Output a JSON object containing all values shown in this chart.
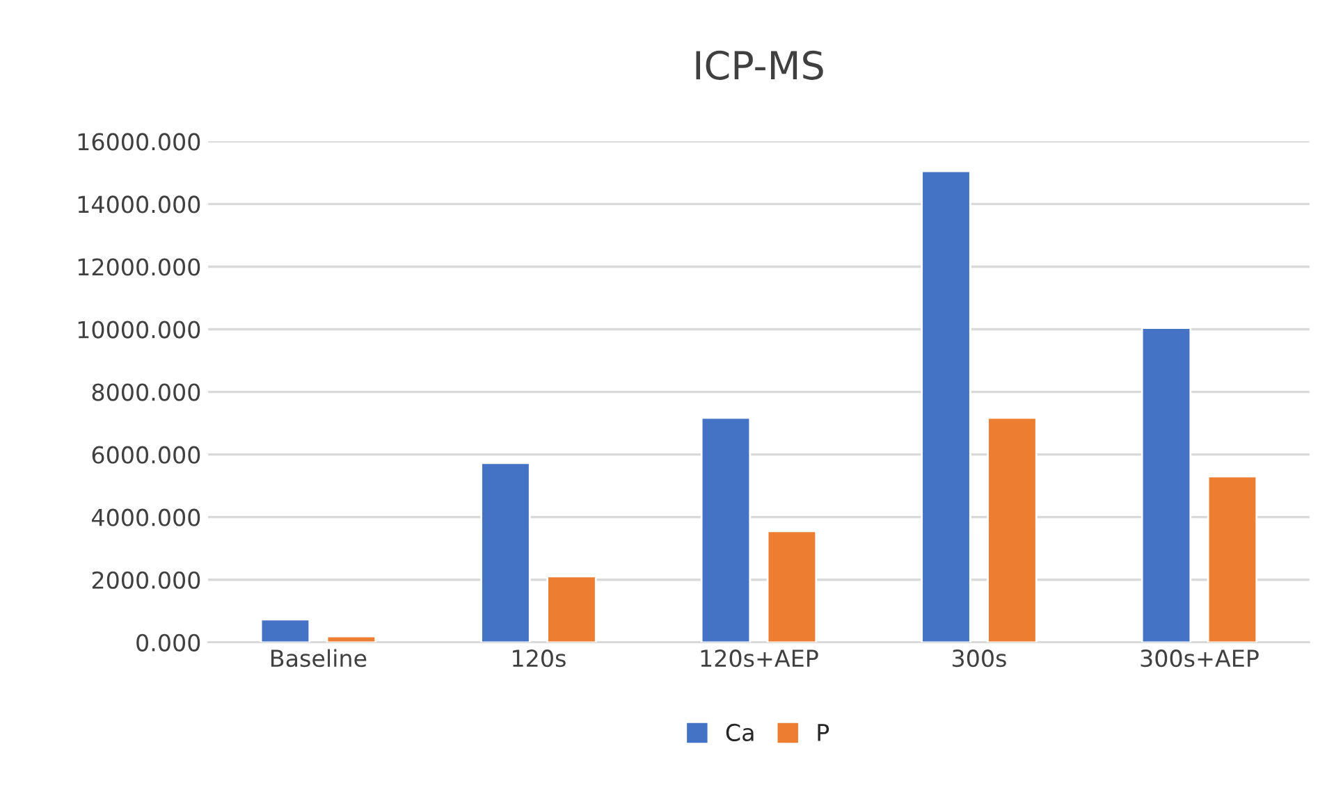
{
  "chart_data": {
    "type": "bar",
    "title": "ICP-MS",
    "categories": [
      "Baseline",
      "120s",
      "120s+AEP",
      "300s",
      "300s+AEP"
    ],
    "series": [
      {
        "name": "Ca",
        "color": "#4472c4",
        "values": [
          730,
          5730,
          7170,
          15050,
          10040
        ]
      },
      {
        "name": "P",
        "color": "#ed7d31",
        "values": [
          190,
          2110,
          3550,
          7170,
          5300
        ]
      }
    ],
    "ylim": [
      0,
      16000
    ],
    "yticks": [
      {
        "value": 0,
        "label": "0.000"
      },
      {
        "value": 2000,
        "label": "2000.000"
      },
      {
        "value": 4000,
        "label": "4000.000"
      },
      {
        "value": 6000,
        "label": "6000.000"
      },
      {
        "value": 8000,
        "label": "8000.000"
      },
      {
        "value": 10000,
        "label": "10000.000"
      },
      {
        "value": 12000,
        "label": "12000.000"
      },
      {
        "value": 14000,
        "label": "14000.000"
      },
      {
        "value": 16000,
        "label": "16000.000"
      }
    ],
    "grid": "y",
    "legend": "bottom"
  }
}
